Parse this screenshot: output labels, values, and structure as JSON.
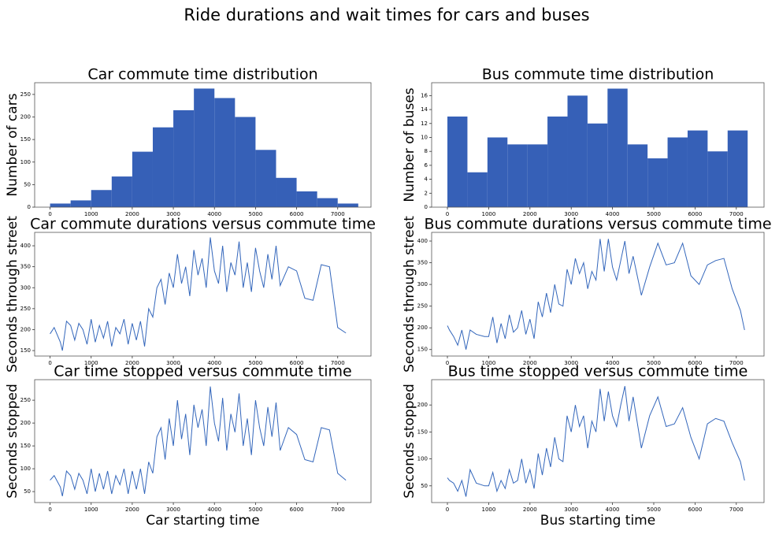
{
  "title": "Ride durations and wait times for cars and buses",
  "chart_data": [
    {
      "type": "histogram",
      "title": "Car commute time distribution",
      "ylabel": "Number of cars",
      "color": "#3660b7",
      "bins": [
        0,
        500,
        1000,
        1500,
        2000,
        2500,
        3000,
        3500,
        4000,
        4500,
        5000,
        5500,
        6000,
        6500,
        7000,
        7500
      ],
      "values": [
        8,
        15,
        38,
        68,
        123,
        177,
        215,
        263,
        242,
        200,
        127,
        65,
        35,
        20,
        8
      ],
      "xlim": [
        -375,
        7810
      ],
      "xticks": [
        0,
        1000,
        2000,
        3000,
        4000,
        5000,
        6000,
        7000
      ],
      "ylim": [
        0,
        276
      ],
      "yticks": [
        0,
        50,
        100,
        150,
        200,
        250
      ]
    },
    {
      "type": "histogram",
      "title": "Bus commute time distribution",
      "ylabel": "Number of buses",
      "color": "#3660b7",
      "bins": [
        0,
        485,
        970,
        1455,
        1940,
        2425,
        2910,
        3395,
        3880,
        4365,
        4850,
        5335,
        5820,
        6305,
        6790,
        7275
      ],
      "values": [
        13,
        5,
        10,
        9,
        9,
        13,
        16,
        12,
        17,
        9,
        7,
        10,
        11,
        8,
        11
      ],
      "xlim": [
        -382,
        7672
      ],
      "xticks": [
        0,
        1000,
        2000,
        3000,
        4000,
        5000,
        6000,
        7000
      ],
      "ylim": [
        0,
        17.85
      ],
      "yticks": [
        0,
        2,
        4,
        6,
        8,
        10,
        12,
        14,
        16
      ]
    },
    {
      "type": "line",
      "title": "Car commute durations versus commute time",
      "ylabel": "Seconds through street",
      "color": "#3366bb",
      "x": [
        0,
        100,
        250,
        300,
        400,
        500,
        600,
        700,
        800,
        900,
        1000,
        1100,
        1200,
        1300,
        1400,
        1500,
        1600,
        1700,
        1800,
        1900,
        2000,
        2100,
        2200,
        2300,
        2400,
        2500,
        2600,
        2700,
        2800,
        2900,
        3000,
        3100,
        3200,
        3300,
        3400,
        3500,
        3600,
        3700,
        3800,
        3900,
        4000,
        4100,
        4200,
        4300,
        4400,
        4500,
        4600,
        4700,
        4800,
        4900,
        5000,
        5100,
        5200,
        5300,
        5400,
        5500,
        5600,
        5800,
        6000,
        6200,
        6400,
        6600,
        6800,
        7000,
        7200
      ],
      "values": [
        190,
        205,
        170,
        150,
        220,
        210,
        175,
        215,
        200,
        165,
        225,
        170,
        210,
        180,
        220,
        160,
        205,
        190,
        225,
        165,
        215,
        175,
        220,
        160,
        250,
        230,
        300,
        320,
        260,
        335,
        300,
        380,
        310,
        350,
        280,
        390,
        330,
        370,
        300,
        420,
        340,
        310,
        400,
        290,
        360,
        330,
        410,
        300,
        360,
        290,
        395,
        340,
        300,
        380,
        320,
        400,
        305,
        350,
        340,
        275,
        270,
        355,
        350,
        205,
        192
      ],
      "xlim": [
        -375,
        7810
      ],
      "xticks": [
        0,
        1000,
        2000,
        3000,
        4000,
        5000,
        6000,
        7000
      ],
      "ylim": [
        137,
        432
      ],
      "yticks": [
        150,
        200,
        250,
        300,
        350,
        400
      ]
    },
    {
      "type": "line",
      "title": "Bus commute durations versus commute time",
      "ylabel": "Seconds through street",
      "color": "#3366bb",
      "x": [
        0,
        50,
        150,
        250,
        350,
        450,
        550,
        700,
        900,
        1000,
        1100,
        1200,
        1300,
        1400,
        1500,
        1600,
        1700,
        1800,
        1900,
        2000,
        2100,
        2200,
        2300,
        2400,
        2500,
        2600,
        2700,
        2800,
        2900,
        3000,
        3100,
        3200,
        3300,
        3400,
        3500,
        3600,
        3700,
        3800,
        3900,
        4000,
        4100,
        4200,
        4300,
        4400,
        4500,
        4700,
        4900,
        5100,
        5300,
        5500,
        5700,
        5900,
        6100,
        6300,
        6500,
        6700,
        6900,
        7100,
        7200
      ],
      "values": [
        205,
        195,
        180,
        160,
        195,
        150,
        195,
        185,
        180,
        180,
        225,
        165,
        210,
        175,
        230,
        190,
        200,
        240,
        185,
        220,
        175,
        260,
        225,
        280,
        235,
        300,
        255,
        250,
        335,
        300,
        360,
        325,
        350,
        290,
        330,
        310,
        405,
        330,
        405,
        340,
        310,
        355,
        400,
        325,
        365,
        275,
        340,
        395,
        345,
        350,
        395,
        320,
        300,
        345,
        355,
        360,
        290,
        240,
        195
      ],
      "xlim": [
        -382,
        7672
      ],
      "xticks": [
        0,
        1000,
        2000,
        3000,
        4000,
        5000,
        6000,
        7000
      ],
      "ylim": [
        135,
        420
      ],
      "yticks": [
        150,
        200,
        250,
        300,
        350,
        400
      ]
    },
    {
      "type": "line",
      "title": "Car time stopped versus commute time",
      "ylabel": "Seconds stopped",
      "xlabel": "Car starting time",
      "color": "#3366bb",
      "x": [
        0,
        100,
        250,
        300,
        400,
        500,
        600,
        700,
        800,
        900,
        1000,
        1100,
        1200,
        1300,
        1400,
        1500,
        1600,
        1700,
        1800,
        1900,
        2000,
        2100,
        2200,
        2300,
        2400,
        2500,
        2600,
        2700,
        2800,
        2900,
        3000,
        3100,
        3200,
        3300,
        3400,
        3500,
        3600,
        3700,
        3800,
        3900,
        4000,
        4100,
        4200,
        4300,
        4400,
        4500,
        4600,
        4700,
        4800,
        4900,
        5000,
        5100,
        5200,
        5300,
        5400,
        5500,
        5600,
        5800,
        6000,
        6200,
        6400,
        6600,
        6800,
        7000,
        7200
      ],
      "values": [
        75,
        85,
        60,
        40,
        95,
        85,
        55,
        90,
        75,
        45,
        100,
        50,
        90,
        55,
        95,
        45,
        85,
        65,
        100,
        45,
        95,
        55,
        100,
        45,
        115,
        90,
        170,
        190,
        120,
        210,
        150,
        250,
        165,
        220,
        130,
        240,
        190,
        230,
        150,
        280,
        200,
        160,
        255,
        140,
        220,
        180,
        265,
        150,
        210,
        130,
        250,
        190,
        150,
        235,
        170,
        245,
        140,
        190,
        175,
        120,
        115,
        190,
        185,
        90,
        75
      ],
      "xlim": [
        -375,
        7810
      ],
      "xticks": [
        0,
        1000,
        2000,
        3000,
        4000,
        5000,
        6000,
        7000
      ],
      "ylim": [
        26,
        295
      ],
      "yticks": [
        50,
        100,
        150,
        200,
        250
      ]
    },
    {
      "type": "line",
      "title": "Bus time stopped versus commute time",
      "ylabel": "Seconds stopped",
      "xlabel": "Bus starting time",
      "color": "#3366bb",
      "x": [
        0,
        50,
        150,
        250,
        350,
        450,
        550,
        700,
        900,
        1000,
        1100,
        1200,
        1300,
        1400,
        1500,
        1600,
        1700,
        1800,
        1900,
        2000,
        2100,
        2200,
        2300,
        2400,
        2500,
        2600,
        2700,
        2800,
        2900,
        3000,
        3100,
        3200,
        3300,
        3400,
        3500,
        3600,
        3700,
        3800,
        3900,
        4000,
        4100,
        4200,
        4300,
        4400,
        4500,
        4700,
        4900,
        5100,
        5300,
        5500,
        5700,
        5900,
        6100,
        6300,
        6500,
        6700,
        6900,
        7100,
        7200
      ],
      "values": [
        65,
        60,
        55,
        40,
        60,
        30,
        80,
        55,
        50,
        50,
        75,
        40,
        60,
        45,
        80,
        55,
        60,
        100,
        55,
        80,
        45,
        110,
        70,
        120,
        85,
        140,
        100,
        95,
        180,
        150,
        200,
        160,
        180,
        120,
        170,
        150,
        230,
        170,
        225,
        180,
        160,
        200,
        235,
        170,
        215,
        120,
        180,
        215,
        160,
        165,
        195,
        140,
        100,
        165,
        175,
        170,
        130,
        95,
        60
      ],
      "xlim": [
        -382,
        7672
      ],
      "xticks": [
        0,
        1000,
        2000,
        3000,
        4000,
        5000,
        6000,
        7000
      ],
      "ylim": [
        19,
        247
      ],
      "yticks": [
        50,
        100,
        150,
        200
      ]
    }
  ]
}
